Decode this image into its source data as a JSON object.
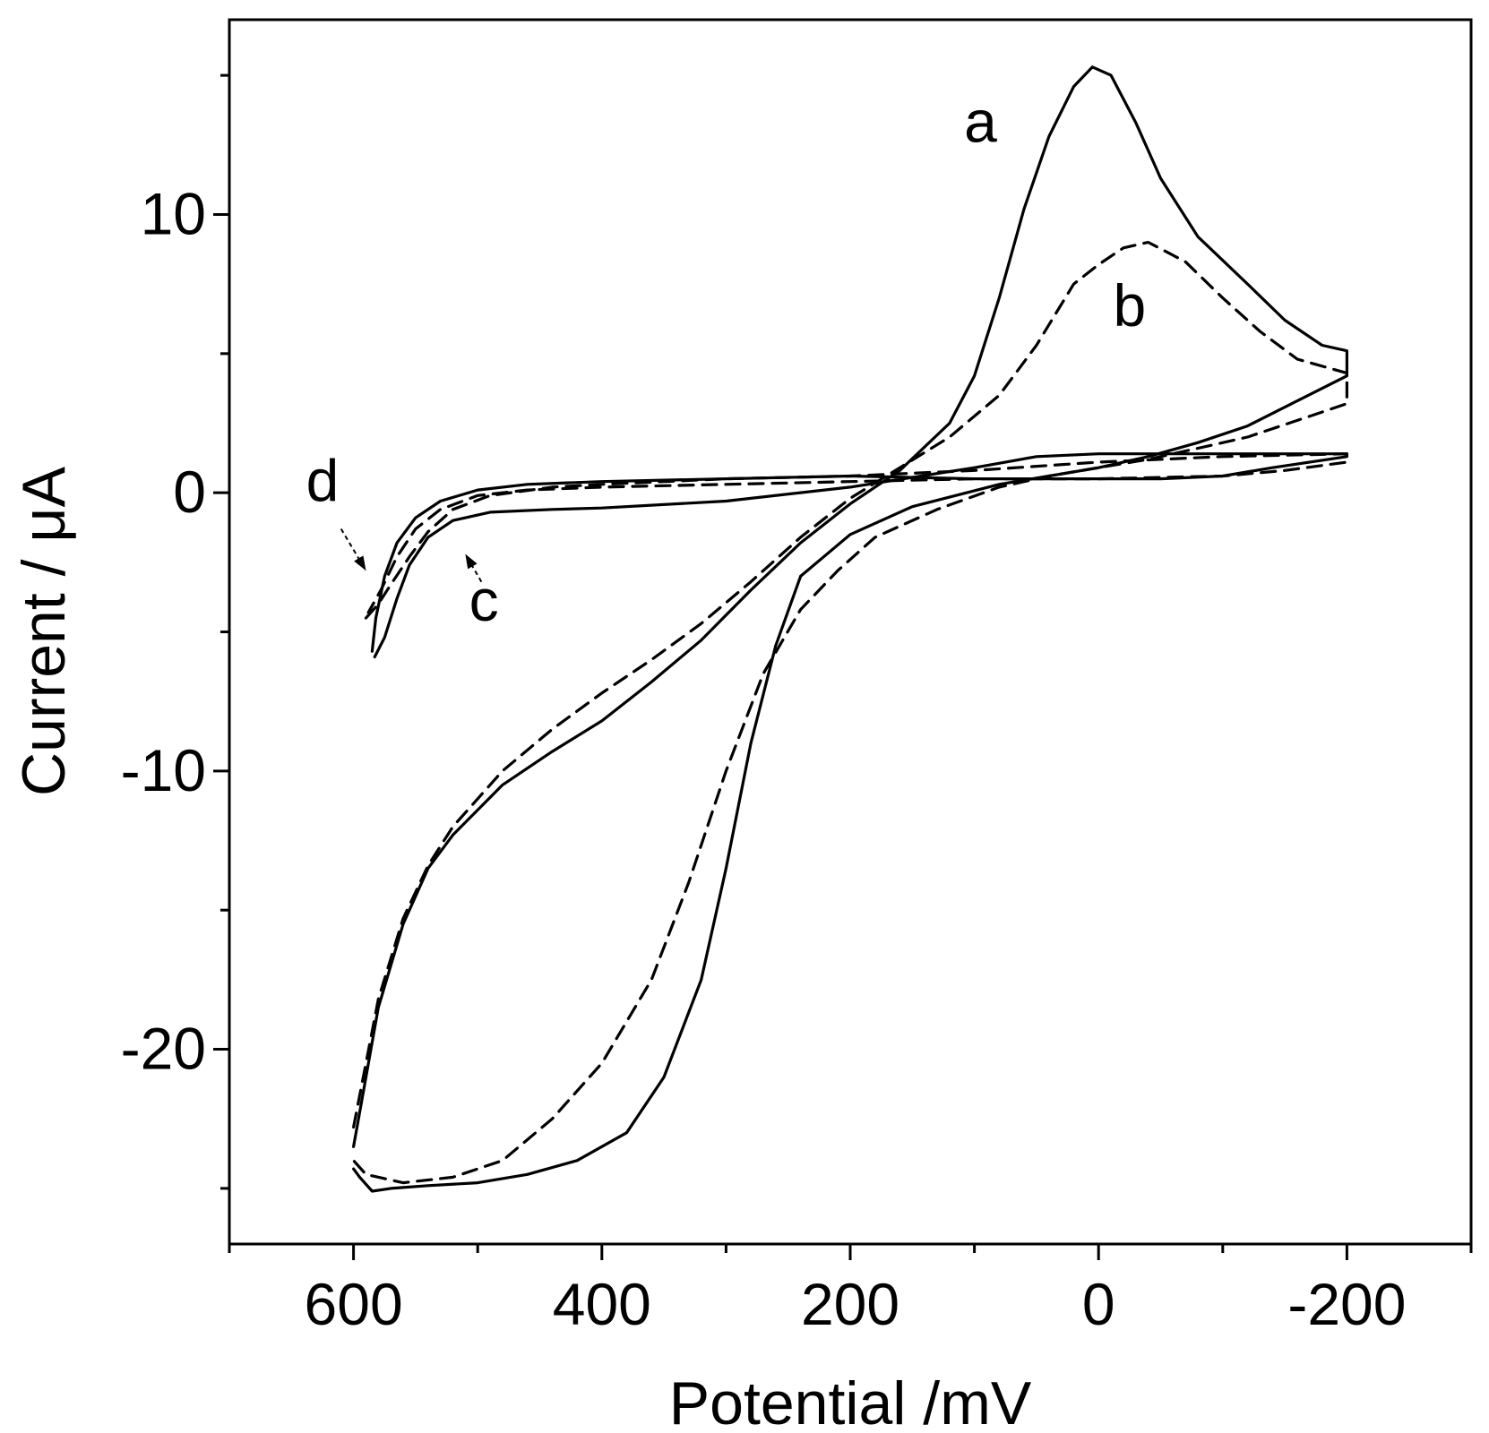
{
  "chart_data": {
    "type": "line",
    "title": "",
    "xlabel": "Potential /mV",
    "ylabel": "Current / μA",
    "xlim": [
      700,
      -300
    ],
    "ylim": [
      -27,
      17
    ],
    "x_ticks": [
      600,
      400,
      200,
      0,
      -200
    ],
    "x_tick_labels": [
      "600",
      "400",
      "200",
      "0",
      "-200"
    ],
    "x_minor_ticks": [
      700,
      500,
      300,
      100,
      -100,
      -300
    ],
    "y_ticks": [
      10,
      0,
      -10,
      -20
    ],
    "y_tick_labels": [
      "10",
      "0",
      "-10",
      "-20"
    ],
    "y_minor_ticks": [
      15,
      5,
      -5,
      -15,
      -25
    ],
    "grid": false,
    "series": [
      {
        "name": "a",
        "style": "solid",
        "points": [
          [
            600,
            -23.5
          ],
          [
            590,
            -21.0
          ],
          [
            580,
            -18.5
          ],
          [
            560,
            -15.5
          ],
          [
            540,
            -13.5
          ],
          [
            520,
            -12.3
          ],
          [
            480,
            -10.5
          ],
          [
            440,
            -9.3
          ],
          [
            400,
            -8.2
          ],
          [
            360,
            -6.8
          ],
          [
            320,
            -5.3
          ],
          [
            280,
            -3.5
          ],
          [
            240,
            -1.8
          ],
          [
            200,
            -0.4
          ],
          [
            160,
            0.8
          ],
          [
            120,
            2.5
          ],
          [
            100,
            4.2
          ],
          [
            80,
            7.0
          ],
          [
            60,
            10.2
          ],
          [
            40,
            12.8
          ],
          [
            20,
            14.6
          ],
          [
            5,
            15.3
          ],
          [
            -10,
            15.0
          ],
          [
            -30,
            13.3
          ],
          [
            -50,
            11.3
          ],
          [
            -80,
            9.2
          ],
          [
            -120,
            7.5
          ],
          [
            -150,
            6.2
          ],
          [
            -180,
            5.3
          ],
          [
            -200,
            5.1
          ],
          [
            -200,
            4.2
          ],
          [
            -160,
            3.3
          ],
          [
            -120,
            2.4
          ],
          [
            -80,
            1.8
          ],
          [
            -40,
            1.3
          ],
          [
            0,
            0.9
          ],
          [
            40,
            0.6
          ],
          [
            80,
            0.3
          ],
          [
            150,
            -0.5
          ],
          [
            200,
            -1.5
          ],
          [
            240,
            -3.0
          ],
          [
            260,
            -5.5
          ],
          [
            280,
            -9.0
          ],
          [
            300,
            -13.5
          ],
          [
            320,
            -17.5
          ],
          [
            350,
            -21.0
          ],
          [
            380,
            -23.0
          ],
          [
            420,
            -24.0
          ],
          [
            460,
            -24.5
          ],
          [
            500,
            -24.8
          ],
          [
            540,
            -24.9
          ],
          [
            570,
            -25.0
          ],
          [
            585,
            -25.1
          ],
          [
            595,
            -24.6
          ],
          [
            600,
            -24.3
          ]
        ]
      },
      {
        "name": "b",
        "style": "dashed",
        "points": [
          [
            600,
            -22.8
          ],
          [
            590,
            -20.5
          ],
          [
            580,
            -18.2
          ],
          [
            560,
            -15.3
          ],
          [
            540,
            -13.4
          ],
          [
            520,
            -12.0
          ],
          [
            480,
            -10.0
          ],
          [
            440,
            -8.5
          ],
          [
            400,
            -7.2
          ],
          [
            360,
            -6.0
          ],
          [
            320,
            -4.7
          ],
          [
            280,
            -3.2
          ],
          [
            240,
            -1.6
          ],
          [
            200,
            -0.2
          ],
          [
            160,
            0.9
          ],
          [
            120,
            2.0
          ],
          [
            80,
            3.5
          ],
          [
            50,
            5.3
          ],
          [
            20,
            7.5
          ],
          [
            0,
            8.2
          ],
          [
            -20,
            8.8
          ],
          [
            -40,
            9.0
          ],
          [
            -70,
            8.3
          ],
          [
            -100,
            7.0
          ],
          [
            -130,
            5.8
          ],
          [
            -160,
            4.8
          ],
          [
            -200,
            4.3
          ],
          [
            -200,
            3.2
          ],
          [
            -160,
            2.6
          ],
          [
            -120,
            2.0
          ],
          [
            -80,
            1.6
          ],
          [
            -40,
            1.2
          ],
          [
            0,
            0.9
          ],
          [
            40,
            0.6
          ],
          [
            80,
            0.2
          ],
          [
            130,
            -0.6
          ],
          [
            180,
            -1.6
          ],
          [
            210,
            -2.8
          ],
          [
            240,
            -4.2
          ],
          [
            270,
            -6.5
          ],
          [
            300,
            -10.0
          ],
          [
            330,
            -14.0
          ],
          [
            360,
            -17.5
          ],
          [
            400,
            -20.5
          ],
          [
            440,
            -22.5
          ],
          [
            480,
            -24.0
          ],
          [
            520,
            -24.6
          ],
          [
            560,
            -24.8
          ],
          [
            590,
            -24.5
          ],
          [
            600,
            -24.0
          ]
        ]
      },
      {
        "name": "c",
        "style": "solid",
        "points": [
          [
            583,
            -5.9
          ],
          [
            575,
            -5.2
          ],
          [
            565,
            -3.8
          ],
          [
            555,
            -2.6
          ],
          [
            540,
            -1.6
          ],
          [
            520,
            -1.0
          ],
          [
            490,
            -0.7
          ],
          [
            440,
            -0.6
          ],
          [
            400,
            -0.55
          ],
          [
            300,
            -0.3
          ],
          [
            200,
            0.2
          ],
          [
            100,
            0.9
          ],
          [
            50,
            1.3
          ],
          [
            0,
            1.4
          ],
          [
            -100,
            1.4
          ],
          [
            -200,
            1.4
          ],
          [
            -200,
            1.3
          ],
          [
            -140,
            0.9
          ],
          [
            -100,
            0.6
          ],
          [
            -50,
            0.5
          ],
          [
            0,
            0.5
          ],
          [
            100,
            0.5
          ],
          [
            200,
            0.6
          ],
          [
            300,
            0.5
          ],
          [
            400,
            0.4
          ],
          [
            460,
            0.3
          ],
          [
            500,
            0.1
          ],
          [
            530,
            -0.3
          ],
          [
            550,
            -0.9
          ],
          [
            565,
            -1.8
          ],
          [
            575,
            -3.0
          ],
          [
            582,
            -4.5
          ],
          [
            585,
            -5.7
          ]
        ]
      },
      {
        "name": "d",
        "style": "dashed",
        "points": [
          [
            590,
            -4.5
          ],
          [
            580,
            -4.0
          ],
          [
            570,
            -3.3
          ],
          [
            555,
            -2.3
          ],
          [
            540,
            -1.4
          ],
          [
            520,
            -0.6
          ],
          [
            490,
            -0.1
          ],
          [
            440,
            0.2
          ],
          [
            400,
            0.3
          ],
          [
            300,
            0.5
          ],
          [
            200,
            0.6
          ],
          [
            100,
            0.8
          ],
          [
            0,
            1.1
          ],
          [
            -100,
            1.3
          ],
          [
            -200,
            1.4
          ],
          [
            -200,
            1.1
          ],
          [
            -150,
            0.8
          ],
          [
            -100,
            0.6
          ],
          [
            0,
            0.5
          ],
          [
            100,
            0.5
          ],
          [
            200,
            0.4
          ],
          [
            300,
            0.3
          ],
          [
            400,
            0.2
          ],
          [
            460,
            0.1
          ],
          [
            500,
            -0.1
          ],
          [
            530,
            -0.6
          ],
          [
            550,
            -1.3
          ],
          [
            565,
            -2.3
          ],
          [
            578,
            -3.5
          ],
          [
            588,
            -4.3
          ]
        ]
      }
    ],
    "annotations": [
      {
        "text": "a",
        "x": 95,
        "y": 12.6
      },
      {
        "text": "b",
        "x": -25,
        "y": 6.0
      },
      {
        "text": "c",
        "x": 495,
        "y": -4.6
      },
      {
        "text": "d",
        "x": 625,
        "y": -0.3
      }
    ],
    "arrows": [
      {
        "label": "d",
        "from": [
          610,
          -1.3
        ],
        "to": [
          590,
          -2.8
        ]
      },
      {
        "label": "c",
        "from": [
          497,
          -3.2
        ],
        "to": [
          510,
          -2.2
        ]
      }
    ]
  }
}
